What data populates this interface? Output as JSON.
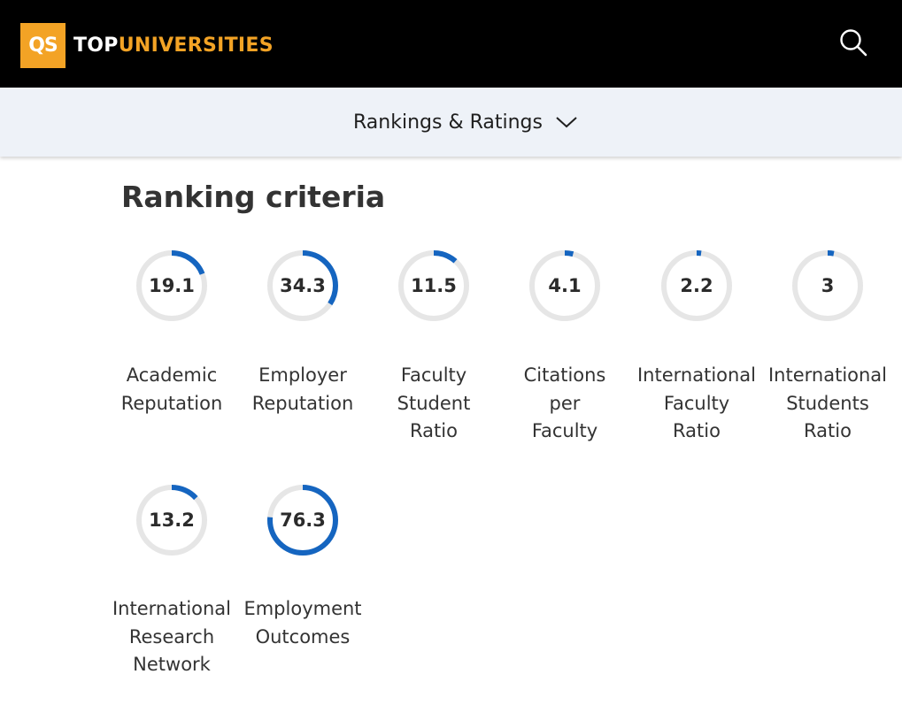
{
  "header": {
    "logo_badge": "QS",
    "logo_top": "TOP",
    "logo_universities": "UNIVERSITIES",
    "search_icon": "search-icon",
    "brand_color": "#f3a325",
    "background": "#000000"
  },
  "subnav": {
    "label": "Rankings & Ratings",
    "chevron_icon": "chevron-down-icon"
  },
  "ranking_criteria": {
    "title": "Ranking criteria",
    "ring_color": "#1565c0",
    "track_color": "#e6e6e6",
    "items": [
      {
        "value": "19.1",
        "label_lines": [
          "Academic",
          "Reputation"
        ]
      },
      {
        "value": "34.3",
        "label_lines": [
          "Employer",
          "Reputation"
        ]
      },
      {
        "value": "11.5",
        "label_lines": [
          "Faculty",
          "Student",
          "Ratio"
        ]
      },
      {
        "value": "4.1",
        "label_lines": [
          "Citations",
          "per",
          "Faculty"
        ]
      },
      {
        "value": "2.2",
        "label_lines": [
          "International",
          "Faculty",
          "Ratio"
        ]
      },
      {
        "value": "3",
        "label_lines": [
          "International",
          "Students",
          "Ratio"
        ]
      },
      {
        "value": "13.2",
        "label_lines": [
          "International",
          "Research",
          "Network"
        ]
      },
      {
        "value": "76.3",
        "label_lines": [
          "Employment",
          "Outcomes"
        ]
      }
    ]
  }
}
